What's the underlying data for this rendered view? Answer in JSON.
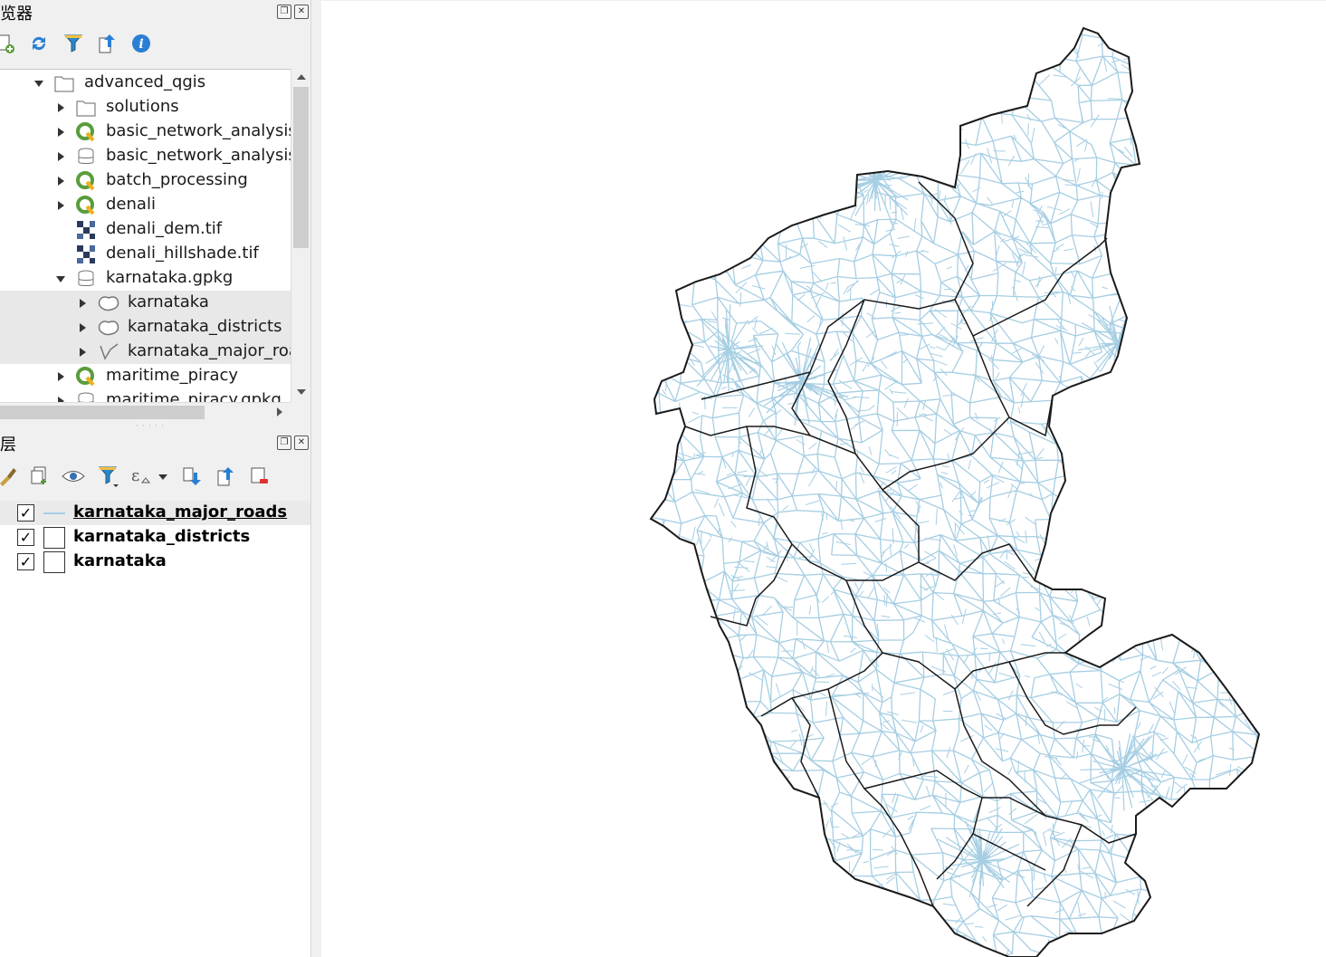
{
  "browser_panel": {
    "title": "浏览器",
    "title_visible": "览器",
    "toolbar": [
      "add-layer-icon",
      "refresh-icon",
      "filter-icon",
      "collapse-all-icon",
      "info-icon"
    ],
    "tree": [
      {
        "label": "advanced_qgis",
        "icon": "folder-icon",
        "expanded": true,
        "level": 0
      },
      {
        "label": "solutions",
        "icon": "folder-icon",
        "expanded": false,
        "level": 1
      },
      {
        "label": "basic_network_analysis",
        "icon": "qgis-project-icon",
        "expanded": false,
        "level": 1
      },
      {
        "label": "basic_network_analysis.g",
        "icon": "geopackage-icon",
        "expanded": false,
        "level": 1
      },
      {
        "label": "batch_processing",
        "icon": "qgis-project-icon",
        "expanded": false,
        "level": 1
      },
      {
        "label": "denali",
        "icon": "qgis-project-icon",
        "expanded": false,
        "level": 1
      },
      {
        "label": "denali_dem.tif",
        "icon": "raster-icon",
        "level": 1
      },
      {
        "label": "denali_hillshade.tif",
        "icon": "raster-icon",
        "level": 1
      },
      {
        "label": "karnataka.gpkg",
        "icon": "geopackage-icon",
        "expanded": true,
        "level": 1
      },
      {
        "label": "karnataka",
        "icon": "polygon-layer-icon",
        "expanded": false,
        "level": 2
      },
      {
        "label": "karnataka_districts",
        "icon": "polygon-layer-icon",
        "expanded": false,
        "level": 2
      },
      {
        "label": "karnataka_major_road",
        "icon": "line-layer-icon",
        "expanded": false,
        "level": 2
      },
      {
        "label": "maritime_piracy",
        "icon": "qgis-project-icon",
        "expanded": false,
        "level": 1
      },
      {
        "label": "maritime_piracy.gpkg",
        "icon": "geopackage-icon",
        "expanded": false,
        "level": 1
      }
    ]
  },
  "layers_panel": {
    "title": "图层",
    "title_visible": "层",
    "toolbar": [
      "style-brush-icon",
      "add-group-icon",
      "visibility-eye-icon",
      "filter-icon",
      "expression-icon",
      "expand-all-icon",
      "collapse-all-icon",
      "remove-layer-icon"
    ],
    "layers": [
      {
        "label": "karnataka_major_roads",
        "checked": true,
        "symbol": "line",
        "active": true
      },
      {
        "label": "karnataka_districts",
        "checked": true,
        "symbol": "fill"
      },
      {
        "label": "karnataka",
        "checked": true,
        "symbol": "fill"
      }
    ]
  },
  "map": {
    "road_color": "#a6cee3",
    "boundary_color": "#1a1a1a",
    "background": "#ffffff"
  }
}
